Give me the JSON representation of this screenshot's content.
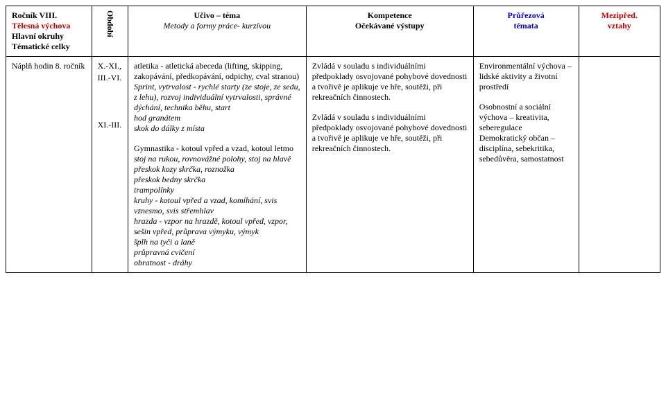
{
  "header": {
    "left": {
      "grade_label": "Ročník VIII.",
      "subject": "Tělesná výchova",
      "line3": "Hlavní okruhy",
      "line4": "Tématické celky"
    },
    "obdobi": "Období",
    "ucivo": {
      "title": "Učivo – téma",
      "subtitle": "Metody a formy práce- kurzívou"
    },
    "kompetence": {
      "title": "Kompetence",
      "subtitle": "Očekávané výstupy"
    },
    "prurezova": {
      "title": "Průřezová",
      "subtitle": "témata"
    },
    "mezipred": {
      "title": "Mezipřed.",
      "subtitle": "vztahy"
    }
  },
  "row": {
    "left": "Náplň hodin 8. ročník",
    "periods": [
      "X.-XI.,",
      "III.-VI.",
      "",
      "",
      "",
      "XI.-III."
    ],
    "sections": [
      {
        "ucivo_title": "atletika - atletická abeceda (lifting, skipping, zakopávání, předkopávání, odpichy, cval stranou)",
        "ucivo_methods": "Sprint, vytrvalost - rychlé starty (ze stoje, ze sedu, z lehu), rozvoj individuální vytrvalosti, správné dýchání, technika běhu, start\nhod granátem\nskok do dálky z místa",
        "kompetence": "Zvládá v souladu s individuálními předpoklady osvojované pohybové dovednosti a tvořivě je aplikuje ve hře, soutěži, při rekreačních činnostech.",
        "prurezova": "Environmentální výchova – lidské aktivity a životní prostředí",
        "mezipred": ""
      },
      {
        "ucivo_title": "Gymnastika - kotoul vpřed a vzad, kotoul letmo",
        "ucivo_methods": "stoj na rukou, rovnovážné polohy, stoj na hlavě\npřeskok kozy skrčka, roznožka\npřeskok bedny skrčka\ntrampolínky\nkruhy - kotoul vpřed a vzad, komíhání, svis vznesmo, svis střemhlav\nhrazda - vzpor na hrazdě, kotoul vpřed, vzpor, sešin vpřed, průprava výmyku, výmyk\nšplh na tyči a laně\nprůpravná cvičení\nobratnost - dráhy",
        "kompetence": "Zvládá v souladu s individuálními předpoklady osvojované pohybové dovednosti a tvořivě je aplikuje ve hře, soutěži, při rekreačních činnostech.",
        "prurezova": "Osobnostní a sociální výchova – kreativita, seberegulace\nDemokratický občan – disciplína, sebekritika, sebedůvěra, samostatnost",
        "mezipred": ""
      }
    ]
  }
}
